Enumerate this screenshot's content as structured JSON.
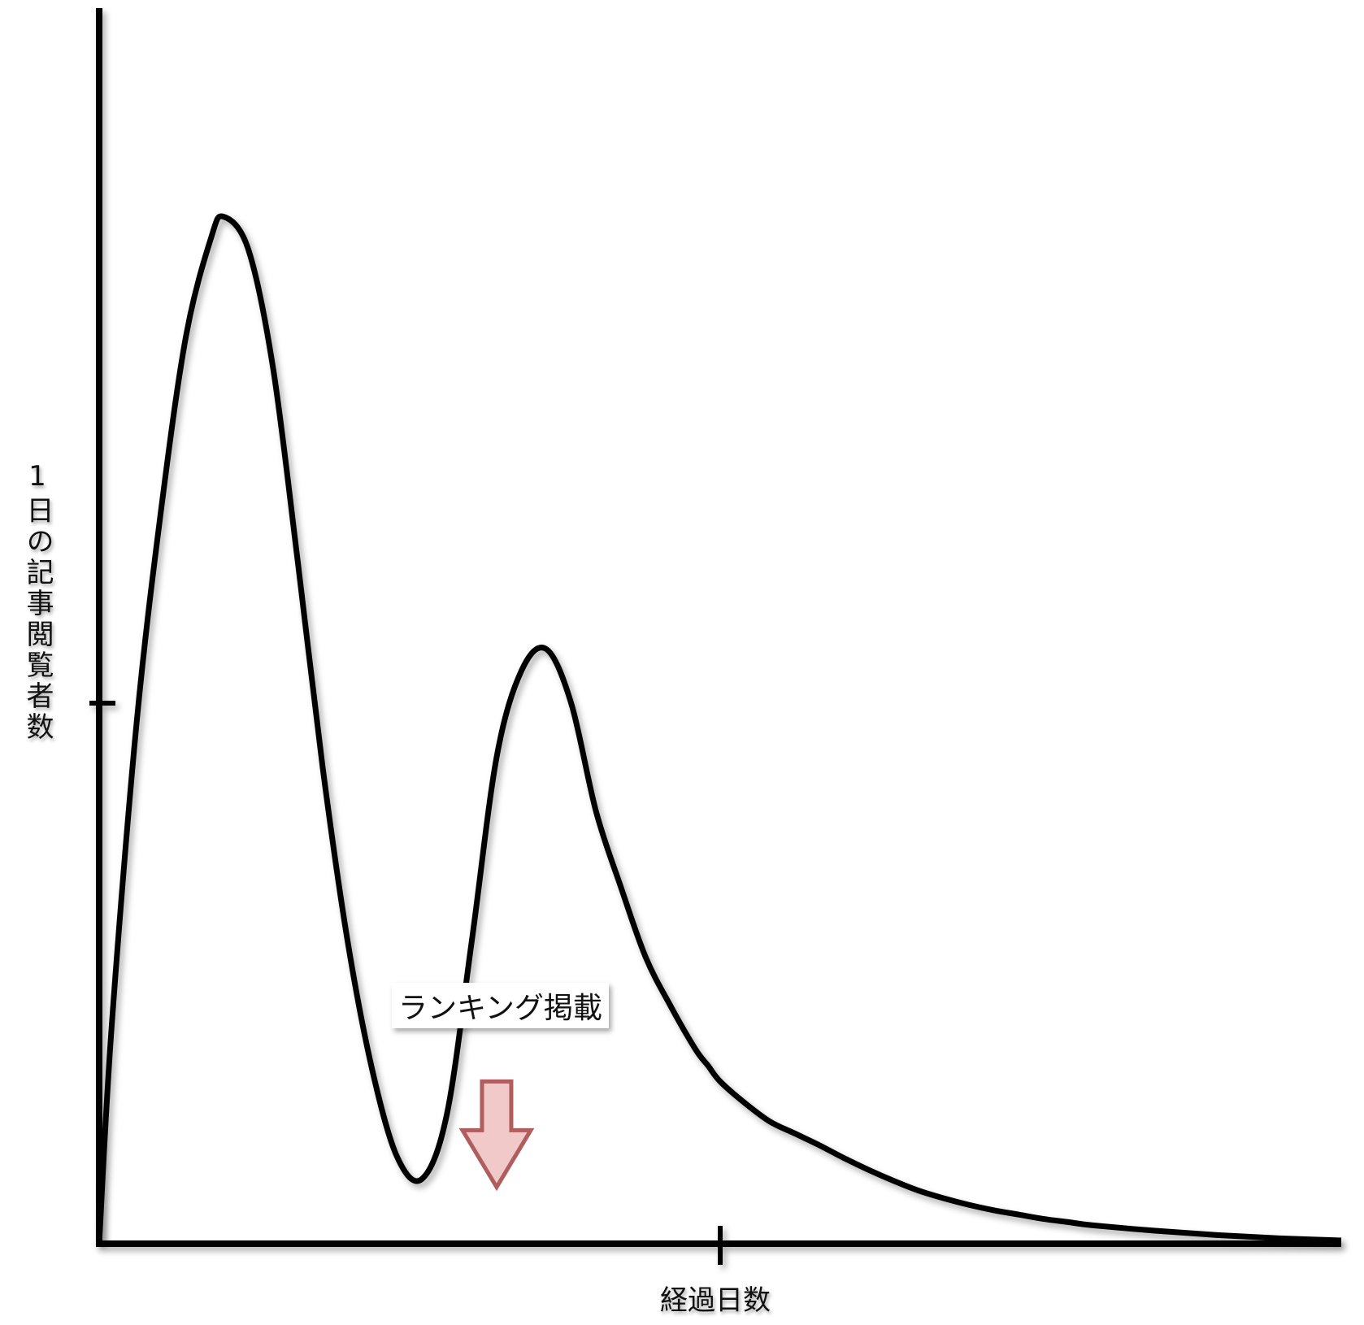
{
  "chart_data": {
    "type": "line",
    "title": "",
    "xlabel": "経過日数",
    "ylabel": "1日の記事閲覧者数",
    "xlim": [
      0,
      100
    ],
    "ylim": [
      0,
      100
    ],
    "grid": false,
    "series": [
      {
        "x": [
          0,
          1,
          3,
          5,
          7,
          9,
          10,
          12,
          14,
          16,
          18,
          20,
          22,
          24,
          26,
          28,
          30,
          32,
          34,
          36,
          38,
          40,
          42,
          44,
          46,
          48,
          49,
          50,
          52,
          54,
          56,
          58,
          60,
          62,
          64,
          66,
          68,
          70,
          72,
          74,
          76,
          78,
          80,
          85,
          90,
          95,
          100
        ],
        "y": [
          0,
          20,
          48,
          68,
          84,
          93,
          95,
          92,
          81,
          63,
          44,
          28,
          16,
          8,
          6,
          12,
          28,
          45,
          53,
          55,
          50,
          40,
          33,
          26.5,
          22,
          18,
          16.5,
          15,
          13,
          11.3,
          10.2,
          9.1,
          7.9,
          6.8,
          5.8,
          4.9,
          4.2,
          3.6,
          3.1,
          2.7,
          2.3,
          2.0,
          1.7,
          1.2,
          0.8,
          0.5,
          0.3
        ]
      }
    ],
    "ytick_at": 50,
    "xtick_at": 50,
    "annotation": {
      "text": "ランキング掲載",
      "x": 32,
      "y": 12,
      "fill_color": "#f2c9c9",
      "stroke_color": "#b05d5d"
    }
  }
}
